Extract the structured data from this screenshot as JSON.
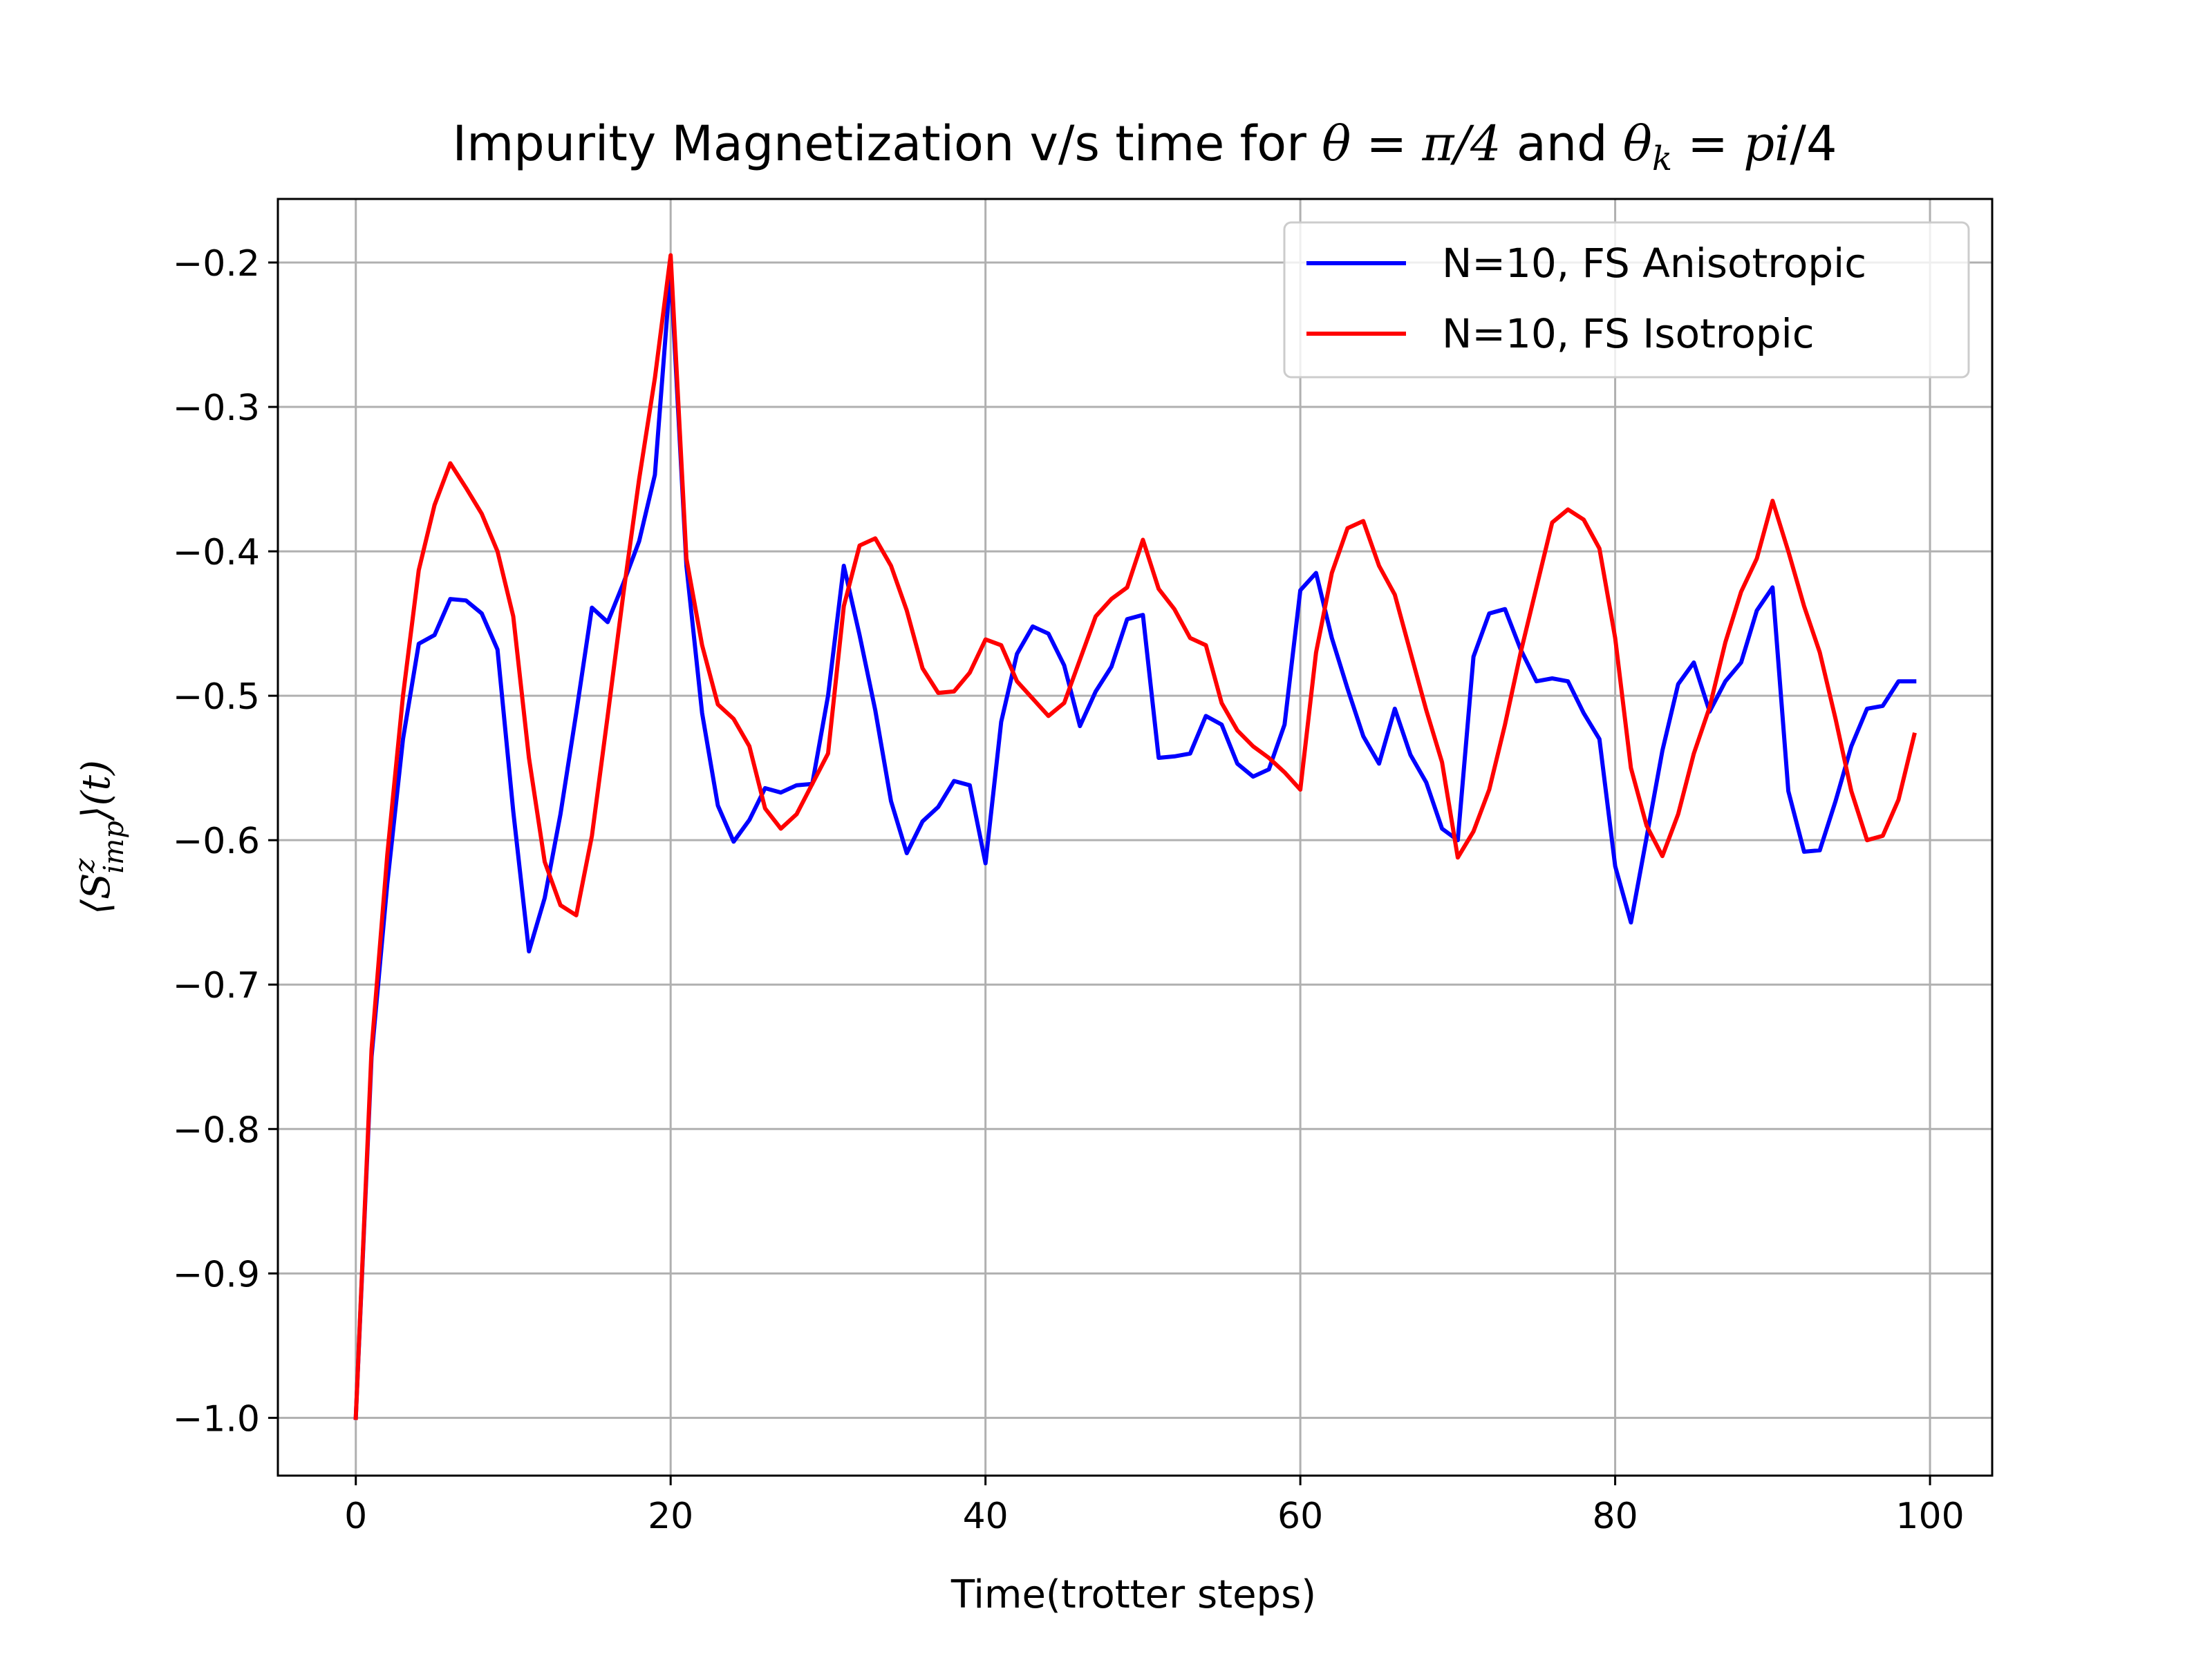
{
  "chart_data": {
    "type": "line",
    "title": {
      "prefix": "Impurity Magnetization v/s time for ",
      "theta": "θ",
      "eq1": " = ",
      "pi_over_4": "π/4",
      "and": " and ",
      "theta_k": "θ",
      "k_sub": "k",
      "eq2": " = ",
      "pi_text": "pi",
      "over4": "/4"
    },
    "xlabel": "Time(trotter steps)",
    "ylabel": {
      "open": "⟨",
      "S": "S",
      "sup": "z",
      "sub": "imp",
      "close": "⟩",
      "t": "(t)"
    },
    "xlim": [
      -4.95,
      103.95
    ],
    "ylim": [
      -1.04,
      -0.156
    ],
    "x_ticks": [
      0,
      20,
      40,
      60,
      80,
      100
    ],
    "x_tick_labels": [
      "0",
      "20",
      "40",
      "60",
      "80",
      "100"
    ],
    "y_ticks": [
      -1.0,
      -0.9,
      -0.8,
      -0.7,
      -0.6,
      -0.5,
      -0.4,
      -0.3,
      -0.2
    ],
    "y_tick_labels": [
      "−1.0",
      "−0.9",
      "−0.8",
      "−0.7",
      "−0.6",
      "−0.5",
      "−0.4",
      "−0.3",
      "−0.2"
    ],
    "grid": true,
    "legend_position": "top-right",
    "x": [
      0,
      1,
      2,
      3,
      4,
      5,
      6,
      7,
      8,
      9,
      10,
      11,
      12,
      13,
      14,
      15,
      16,
      17,
      18,
      19,
      20,
      21,
      22,
      23,
      24,
      25,
      26,
      27,
      28,
      29,
      30,
      31,
      32,
      33,
      34,
      35,
      36,
      37,
      38,
      39,
      40,
      41,
      42,
      43,
      44,
      45,
      46,
      47,
      48,
      49,
      50,
      51,
      52,
      53,
      54,
      55,
      56,
      57,
      58,
      59,
      60,
      61,
      62,
      63,
      64,
      65,
      66,
      67,
      68,
      69,
      70,
      71,
      72,
      73,
      74,
      75,
      76,
      77,
      78,
      79,
      80,
      81,
      82,
      83,
      84,
      85,
      86,
      87,
      88,
      89,
      90,
      91,
      92,
      93,
      94,
      95,
      96,
      97,
      98,
      99
    ],
    "series": [
      {
        "name": "N=10, FS Anisotropic",
        "color": "#0000ff",
        "values": [
          -1.0,
          -0.75,
          -0.63,
          -0.53,
          -0.464,
          -0.458,
          -0.433,
          -0.434,
          -0.443,
          -0.468,
          -0.58,
          -0.677,
          -0.64,
          -0.582,
          -0.512,
          -0.439,
          -0.449,
          -0.422,
          -0.393,
          -0.347,
          -0.205,
          -0.41,
          -0.512,
          -0.576,
          -0.601,
          -0.586,
          -0.564,
          -0.567,
          -0.562,
          -0.561,
          -0.5,
          -0.41,
          -0.458,
          -0.51,
          -0.573,
          -0.609,
          -0.587,
          -0.577,
          -0.559,
          -0.562,
          -0.616,
          -0.518,
          -0.471,
          -0.452,
          -0.457,
          -0.479,
          -0.521,
          -0.497,
          -0.48,
          -0.447,
          -0.444,
          -0.543,
          -0.542,
          -0.54,
          -0.514,
          -0.52,
          -0.547,
          -0.556,
          -0.551,
          -0.52,
          -0.427,
          -0.415,
          -0.46,
          -0.495,
          -0.528,
          -0.547,
          -0.509,
          -0.541,
          -0.56,
          -0.592,
          -0.6,
          -0.473,
          -0.443,
          -0.44,
          -0.468,
          -0.49,
          -0.488,
          -0.49,
          -0.512,
          -0.53,
          -0.618,
          -0.657,
          -0.598,
          -0.538,
          -0.492,
          -0.477,
          -0.511,
          -0.49,
          -0.477,
          -0.441,
          -0.425,
          -0.566,
          -0.608,
          -0.607,
          -0.573,
          -0.535,
          -0.509,
          -0.507,
          -0.49,
          -0.49
        ]
      },
      {
        "name": "N=10, FS Isotropic",
        "color": "#ff0000",
        "values": [
          -1.0,
          -0.745,
          -0.61,
          -0.5,
          -0.413,
          -0.368,
          -0.339,
          -0.356,
          -0.374,
          -0.4,
          -0.445,
          -0.543,
          -0.615,
          -0.645,
          -0.652,
          -0.597,
          -0.514,
          -0.429,
          -0.35,
          -0.28,
          -0.195,
          -0.405,
          -0.465,
          -0.506,
          -0.516,
          -0.535,
          -0.578,
          -0.592,
          -0.582,
          -0.561,
          -0.54,
          -0.438,
          -0.396,
          -0.391,
          -0.41,
          -0.441,
          -0.481,
          -0.498,
          -0.497,
          -0.484,
          -0.461,
          -0.465,
          -0.49,
          -0.502,
          -0.514,
          -0.505,
          -0.475,
          -0.445,
          -0.433,
          -0.425,
          -0.392,
          -0.426,
          -0.44,
          -0.46,
          -0.465,
          -0.505,
          -0.524,
          -0.535,
          -0.543,
          -0.553,
          -0.565,
          -0.47,
          -0.415,
          -0.384,
          -0.379,
          -0.41,
          -0.43,
          -0.47,
          -0.51,
          -0.546,
          -0.612,
          -0.594,
          -0.565,
          -0.52,
          -0.47,
          -0.425,
          -0.38,
          -0.371,
          -0.378,
          -0.398,
          -0.46,
          -0.55,
          -0.59,
          -0.611,
          -0.582,
          -0.54,
          -0.508,
          -0.463,
          -0.428,
          -0.405,
          -0.365,
          -0.4,
          -0.438,
          -0.47,
          -0.516,
          -0.566,
          -0.6,
          -0.597,
          -0.572,
          -0.527
        ]
      }
    ]
  }
}
